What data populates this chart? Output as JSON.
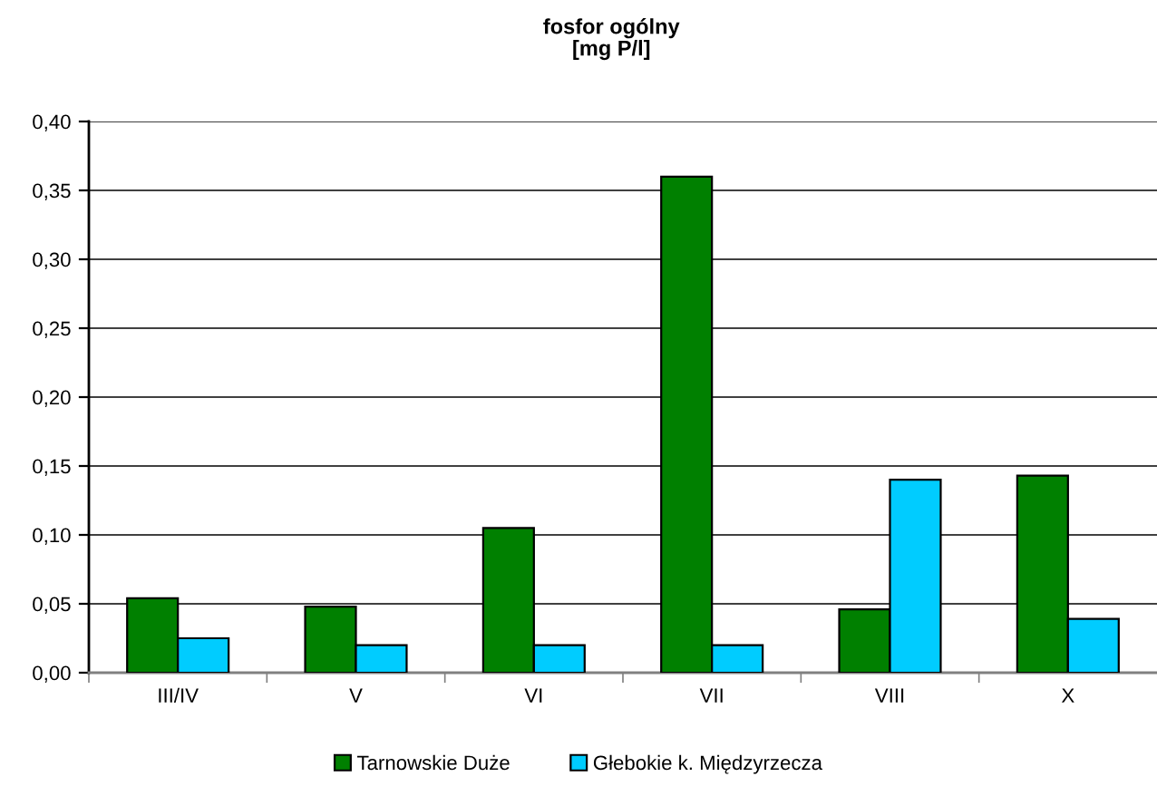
{
  "chart_data": {
    "type": "bar",
    "title": "fosfor ogólny\n[mg P/l]",
    "categories": [
      "III/IV",
      "V",
      "VI",
      "VII",
      "VIII",
      "X"
    ],
    "series": [
      {
        "name": "Tarnowskie Duże",
        "color": "#008000",
        "values": [
          0.054,
          0.048,
          0.105,
          0.36,
          0.046,
          0.143
        ]
      },
      {
        "name": "Głebokie k. Międzyrzecza",
        "color": "#00ccff",
        "values": [
          0.025,
          0.02,
          0.02,
          0.02,
          0.14,
          0.039
        ]
      }
    ],
    "ylim": [
      0,
      0.4
    ],
    "yticks": [
      {
        "value": 0,
        "label": "0,00"
      },
      {
        "value": 0.05,
        "label": "0,05"
      },
      {
        "value": 0.1,
        "label": "0,10"
      },
      {
        "value": 0.15,
        "label": "0,15"
      },
      {
        "value": 0.2,
        "label": "0,20"
      },
      {
        "value": 0.25,
        "label": "0,25"
      },
      {
        "value": 0.3,
        "label": "0,30"
      },
      {
        "value": 0.35,
        "label": "0,35"
      },
      {
        "value": 0.4,
        "label": "0,40"
      }
    ],
    "grid": "y",
    "legend": "bottom"
  }
}
